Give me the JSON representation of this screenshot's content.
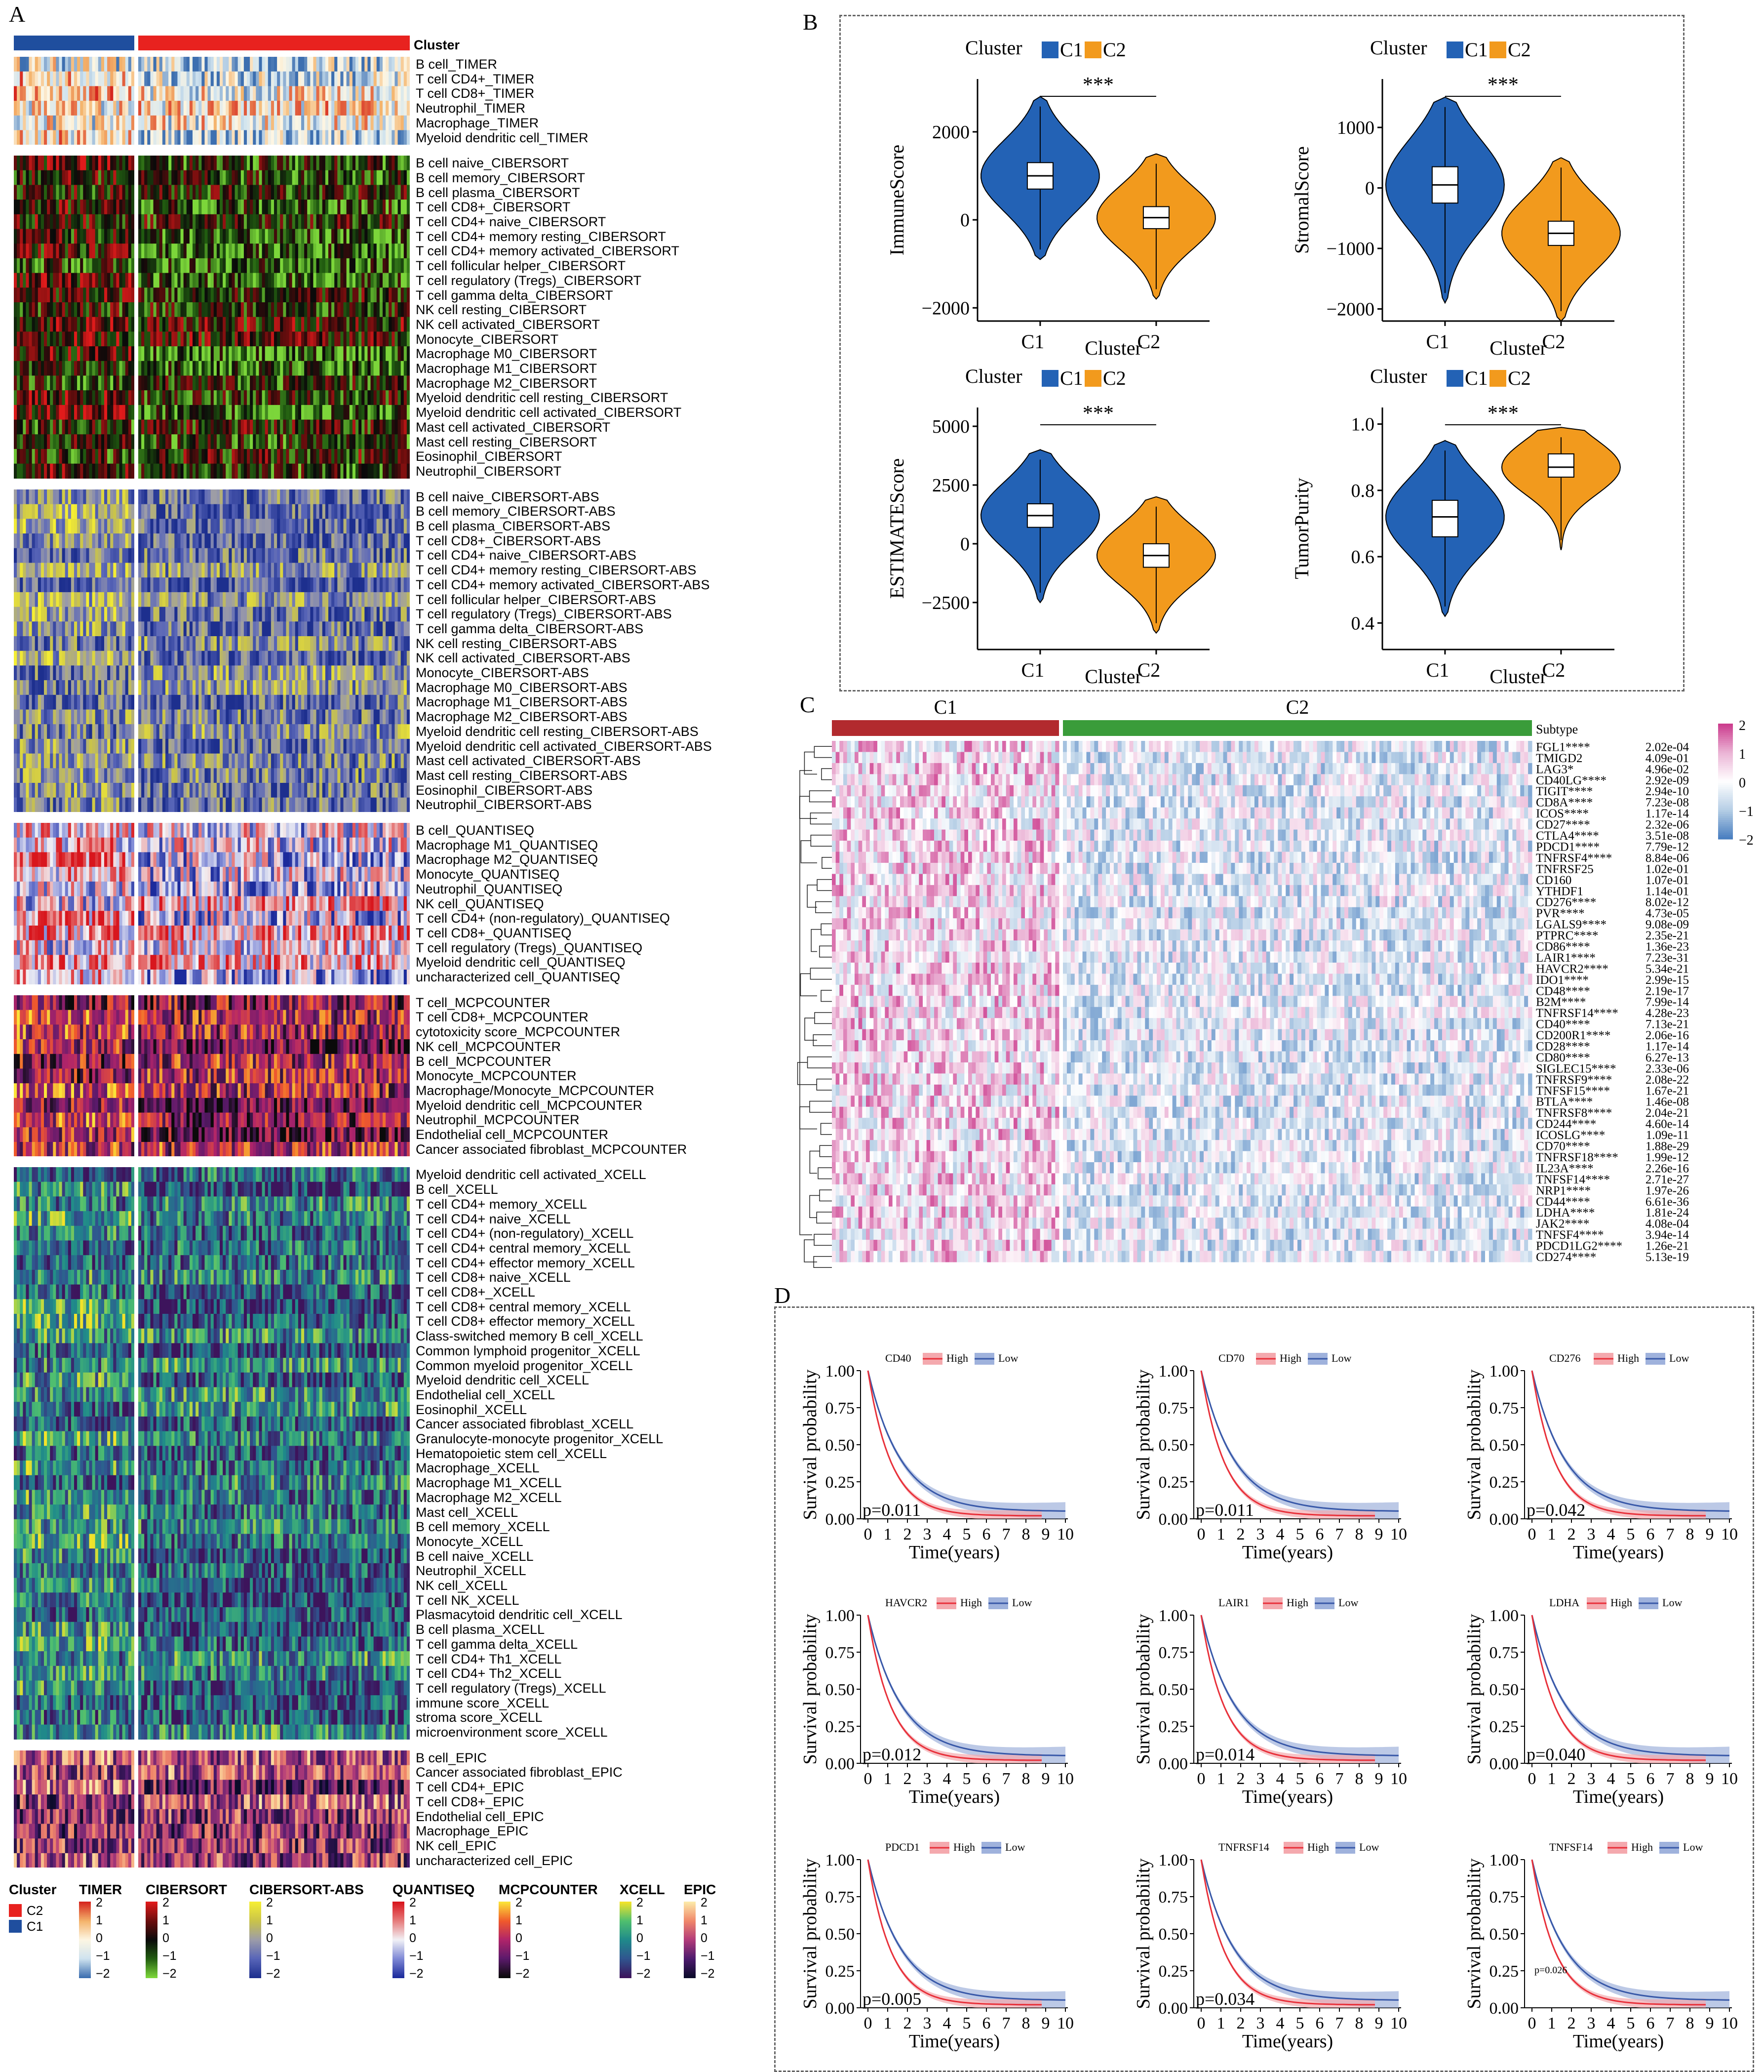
{
  "panel_a": {
    "letter": "A",
    "cluster_label": "Cluster",
    "groups": [
      {
        "name": "TIMER",
        "rows": [
          "B cell_TIMER",
          "T cell CD4+_TIMER",
          "T cell CD8+_TIMER",
          "Neutrophil_TIMER",
          "Macrophage_TIMER",
          "Myeloid dendritic cell_TIMER"
        ]
      },
      {
        "name": "CIBERSORT",
        "rows": [
          "B cell naive_CIBERSORT",
          "B cell memory_CIBERSORT",
          "B cell plasma_CIBERSORT",
          "T cell CD8+_CIBERSORT",
          "T cell CD4+ naive_CIBERSORT",
          "T cell CD4+ memory resting_CIBERSORT",
          "T cell CD4+ memory activated_CIBERSORT",
          "T cell follicular helper_CIBERSORT",
          "T cell regulatory (Tregs)_CIBERSORT",
          "T cell gamma delta_CIBERSORT",
          "NK cell resting_CIBERSORT",
          "NK cell activated_CIBERSORT",
          "Monocyte_CIBERSORT",
          "Macrophage M0_CIBERSORT",
          "Macrophage M1_CIBERSORT",
          "Macrophage M2_CIBERSORT",
          "Myeloid dendritic cell resting_CIBERSORT",
          "Myeloid dendritic cell activated_CIBERSORT",
          "Mast cell activated_CIBERSORT",
          "Mast cell resting_CIBERSORT",
          "Eosinophil_CIBERSORT",
          "Neutrophil_CIBERSORT"
        ]
      },
      {
        "name": "CIBERSORT-ABS",
        "rows": [
          "B cell naive_CIBERSORT-ABS",
          "B cell memory_CIBERSORT-ABS",
          "B cell plasma_CIBERSORT-ABS",
          "T cell CD8+_CIBERSORT-ABS",
          "T cell CD4+ naive_CIBERSORT-ABS",
          "T cell CD4+ memory resting_CIBERSORT-ABS",
          "T cell CD4+ memory activated_CIBERSORT-ABS",
          "T cell follicular helper_CIBERSORT-ABS",
          "T cell regulatory (Tregs)_CIBERSORT-ABS",
          "T cell gamma delta_CIBERSORT-ABS",
          "NK cell resting_CIBERSORT-ABS",
          "NK cell activated_CIBERSORT-ABS",
          "Monocyte_CIBERSORT-ABS",
          "Macrophage M0_CIBERSORT-ABS",
          "Macrophage M1_CIBERSORT-ABS",
          "Macrophage M2_CIBERSORT-ABS",
          "Myeloid dendritic cell resting_CIBERSORT-ABS",
          "Myeloid dendritic cell activated_CIBERSORT-ABS",
          "Mast cell activated_CIBERSORT-ABS",
          "Mast cell resting_CIBERSORT-ABS",
          "Eosinophil_CIBERSORT-ABS",
          "Neutrophil_CIBERSORT-ABS"
        ]
      },
      {
        "name": "QUANTISEQ",
        "rows": [
          "B cell_QUANTISEQ",
          "Macrophage M1_QUANTISEQ",
          "Macrophage M2_QUANTISEQ",
          "Monocyte_QUANTISEQ",
          "Neutrophil_QUANTISEQ",
          "NK cell_QUANTISEQ",
          "T cell CD4+ (non-regulatory)_QUANTISEQ",
          "T cell CD8+_QUANTISEQ",
          "T cell regulatory (Tregs)_QUANTISEQ",
          "Myeloid dendritic cell_QUANTISEQ",
          "uncharacterized cell_QUANTISEQ"
        ]
      },
      {
        "name": "MCPCOUNTER",
        "rows": [
          "T cell_MCPCOUNTER",
          "T cell CD8+_MCPCOUNTER",
          "cytotoxicity score_MCPCOUNTER",
          "NK cell_MCPCOUNTER",
          "B cell_MCPCOUNTER",
          "Monocyte_MCPCOUNTER",
          "Macrophage/Monocyte_MCPCOUNTER",
          "Myeloid dendritic cell_MCPCOUNTER",
          "Neutrophil_MCPCOUNTER",
          "Endothelial cell_MCPCOUNTER",
          "Cancer associated fibroblast_MCPCOUNTER"
        ]
      },
      {
        "name": "XCELL",
        "rows": [
          "Myeloid dendritic cell activated_XCELL",
          "B cell_XCELL",
          "T cell CD4+ memory_XCELL",
          "T cell CD4+ naive_XCELL",
          "T cell CD4+ (non-regulatory)_XCELL",
          "T cell CD4+ central memory_XCELL",
          "T cell CD4+ effector memory_XCELL",
          "T cell CD8+ naive_XCELL",
          "T cell CD8+_XCELL",
          "T cell CD8+ central memory_XCELL",
          "T cell CD8+ effector memory_XCELL",
          "Class-switched memory B cell_XCELL",
          "Common lymphoid progenitor_XCELL",
          "Common myeloid progenitor_XCELL",
          "Myeloid dendritic cell_XCELL",
          "Endothelial cell_XCELL",
          "Eosinophil_XCELL",
          "Cancer associated fibroblast_XCELL",
          "Granulocyte-monocyte progenitor_XCELL",
          "Hematopoietic stem cell_XCELL",
          "Macrophage_XCELL",
          "Macrophage M1_XCELL",
          "Macrophage M2_XCELL",
          "Mast cell_XCELL",
          "B cell memory_XCELL",
          "Monocyte_XCELL",
          "B cell naive_XCELL",
          "Neutrophil_XCELL",
          "NK cell_XCELL",
          "T cell NK_XCELL",
          "Plasmacytoid dendritic cell_XCELL",
          "B cell plasma_XCELL",
          "T cell gamma delta_XCELL",
          "T cell CD4+ Th1_XCELL",
          "T cell CD4+ Th2_XCELL",
          "T cell regulatory (Tregs)_XCELL",
          "immune score_XCELL",
          "stroma score_XCELL",
          "microenvironment score_XCELL"
        ]
      },
      {
        "name": "EPIC",
        "rows": [
          "B cell_EPIC",
          "Cancer associated fibroblast_EPIC",
          "T cell CD4+_EPIC",
          "T cell CD8+_EPIC",
          "Endothelial cell_EPIC",
          "Macrophage_EPIC",
          "NK cell_EPIC",
          "uncharacterized cell_EPIC"
        ]
      }
    ],
    "legend": {
      "cluster_title": "Cluster",
      "cluster_items": [
        "C2",
        "C1"
      ],
      "titles": [
        "TIMER",
        "CIBERSORT",
        "CIBERSORT-ABS",
        "QUANTISEQ",
        "MCPCOUNTER",
        "XCELL",
        "EPIC"
      ],
      "ticks": [
        "2",
        "1",
        "0",
        "−1",
        "−2"
      ]
    },
    "colors": {
      "c1": "#1f4e9e",
      "c2": "#e8221f"
    }
  },
  "panel_b": {
    "letter": "B",
    "legend_title": "Cluster",
    "legend_items": [
      "C1",
      "C2"
    ],
    "colors": {
      "c1": "#2362b5",
      "c2": "#f29a1d"
    },
    "significance": "***",
    "xlabel": "Cluster",
    "chart_data": [
      {
        "type": "violin",
        "ylabel": "ImmuneScore",
        "categories": [
          "C1",
          "C2"
        ],
        "ticks": [
          "2000",
          "0",
          "−2000"
        ],
        "tick_values": [
          2000,
          0,
          -2000
        ],
        "ylim": [
          -2300,
          3200
        ],
        "medians": [
          1000,
          50
        ],
        "q1": [
          700,
          -200
        ],
        "q3": [
          1300,
          300
        ],
        "min": [
          -900,
          -1800
        ],
        "max": [
          2800,
          1500
        ]
      },
      {
        "type": "violin",
        "ylabel": "StromalScore",
        "categories": [
          "C1",
          "C2"
        ],
        "ticks": [
          "1000",
          "0",
          "−1000",
          "−2000"
        ],
        "tick_values": [
          1000,
          0,
          -1000,
          -2000
        ],
        "ylim": [
          -2200,
          1800
        ],
        "medians": [
          50,
          -750
        ],
        "q1": [
          -250,
          -950
        ],
        "q3": [
          350,
          -550
        ],
        "min": [
          -1900,
          -2200
        ],
        "max": [
          1500,
          500
        ]
      },
      {
        "type": "violin",
        "ylabel": "ESTIMATEScore",
        "categories": [
          "C1",
          "C2"
        ],
        "ticks": [
          "5000",
          "2500",
          "0",
          "−2500"
        ],
        "tick_values": [
          5000,
          2500,
          0,
          -2500
        ],
        "ylim": [
          -4500,
          5800
        ],
        "medians": [
          1200,
          -500
        ],
        "q1": [
          700,
          -1000
        ],
        "q3": [
          1700,
          0
        ],
        "min": [
          -2500,
          -3800
        ],
        "max": [
          4000,
          2000
        ]
      },
      {
        "type": "violin",
        "ylabel": "TumorPurity",
        "categories": [
          "C1",
          "C2"
        ],
        "ticks": [
          "1.0",
          "0.8",
          "0.6",
          "0.4"
        ],
        "tick_values": [
          1.0,
          0.8,
          0.6,
          0.4
        ],
        "ylim": [
          0.32,
          1.05
        ],
        "medians": [
          0.72,
          0.87
        ],
        "q1": [
          0.66,
          0.84
        ],
        "q3": [
          0.77,
          0.91
        ],
        "min": [
          0.42,
          0.62
        ],
        "max": [
          0.95,
          0.99
        ]
      }
    ]
  },
  "panel_c": {
    "letter": "C",
    "group_labels": [
      "C1",
      "C2"
    ],
    "subtype_label": "Subtype",
    "colors": {
      "c1": "#b22a2e",
      "c2": "#3a9c3a"
    },
    "scale_ticks": [
      "2",
      "1",
      "0",
      "−1",
      "−2"
    ],
    "genes": [
      {
        "gene": "FGL1****",
        "p": "2.02e-04"
      },
      {
        "gene": "TMIGD2",
        "p": "4.09e-01"
      },
      {
        "gene": "LAG3*",
        "p": "4.96e-02"
      },
      {
        "gene": "CD40LG****",
        "p": "2.92e-09"
      },
      {
        "gene": "TIGIT****",
        "p": "2.94e-10"
      },
      {
        "gene": "CD8A****",
        "p": "7.23e-08"
      },
      {
        "gene": "ICOS****",
        "p": "1.17e-14"
      },
      {
        "gene": "CD27****",
        "p": "2.32e-06"
      },
      {
        "gene": "CTLA4****",
        "p": "3.51e-08"
      },
      {
        "gene": "PDCD1****",
        "p": "7.79e-12"
      },
      {
        "gene": "TNFRSF4****",
        "p": "8.84e-06"
      },
      {
        "gene": "TNFRSF25",
        "p": "1.02e-01"
      },
      {
        "gene": "CD160",
        "p": "1.07e-01"
      },
      {
        "gene": "YTHDF1",
        "p": "1.14e-01"
      },
      {
        "gene": "CD276****",
        "p": "8.02e-12"
      },
      {
        "gene": "PVR****",
        "p": "4.73e-05"
      },
      {
        "gene": "LGALS9****",
        "p": "9.08e-09"
      },
      {
        "gene": "PTPRC****",
        "p": "2.35e-21"
      },
      {
        "gene": "CD86****",
        "p": "1.36e-23"
      },
      {
        "gene": "LAIR1****",
        "p": "7.23e-31"
      },
      {
        "gene": "HAVCR2****",
        "p": "5.34e-21"
      },
      {
        "gene": "IDO1****",
        "p": "2.99e-15"
      },
      {
        "gene": "CD48****",
        "p": "2.19e-17"
      },
      {
        "gene": "B2M****",
        "p": "7.99e-14"
      },
      {
        "gene": "TNFRSF14****",
        "p": "4.28e-23"
      },
      {
        "gene": "CD40****",
        "p": "7.13e-21"
      },
      {
        "gene": "CD200R1****",
        "p": "2.06e-16"
      },
      {
        "gene": "CD28****",
        "p": "1.17e-14"
      },
      {
        "gene": "CD80****",
        "p": "6.27e-13"
      },
      {
        "gene": "SIGLEC15****",
        "p": "2.33e-06"
      },
      {
        "gene": "TNFRSF9****",
        "p": "2.08e-22"
      },
      {
        "gene": "TNFSF15****",
        "p": "1.67e-21"
      },
      {
        "gene": "BTLA****",
        "p": "1.46e-08"
      },
      {
        "gene": "TNFRSF8****",
        "p": "2.04e-21"
      },
      {
        "gene": "CD244****",
        "p": "4.60e-14"
      },
      {
        "gene": "ICOSLG****",
        "p": "1.09e-11"
      },
      {
        "gene": "CD70****",
        "p": "1.88e-29"
      },
      {
        "gene": "TNFRSF18****",
        "p": "1.99e-12"
      },
      {
        "gene": "IL23A****",
        "p": "2.26e-16"
      },
      {
        "gene": "TNFSF14****",
        "p": "2.71e-27"
      },
      {
        "gene": "NRP1****",
        "p": "1.97e-26"
      },
      {
        "gene": "CD44****",
        "p": "6.61e-36"
      },
      {
        "gene": "LDHA****",
        "p": "1.81e-24"
      },
      {
        "gene": "JAK2****",
        "p": "4.08e-04"
      },
      {
        "gene": "TNFSF4****",
        "p": "3.94e-14"
      },
      {
        "gene": "PDCD1LG2****",
        "p": "1.26e-21"
      },
      {
        "gene": "CD274****",
        "p": "5.13e-19"
      }
    ]
  },
  "panel_d": {
    "letter": "D",
    "legend_high": "High",
    "legend_low": "Low",
    "xlabel": "Time(years)",
    "ylabel": "Survival probability",
    "yticks": [
      "1.00",
      "0.75",
      "0.50",
      "0.25",
      "0.00"
    ],
    "xticks": [
      "0",
      "1",
      "2",
      "3",
      "4",
      "5",
      "6",
      "7",
      "8",
      "9",
      "10"
    ],
    "colors": {
      "high": "#e8303a",
      "low": "#3858a8",
      "high_band": "#f4a9ae",
      "low_band": "#9fb2dc"
    },
    "chart_data": [
      {
        "type": "line",
        "gene": "CD40",
        "p": "p=0.011"
      },
      {
        "type": "line",
        "gene": "CD70",
        "p": "p=0.011"
      },
      {
        "type": "line",
        "gene": "CD276",
        "p": "p=0.042"
      },
      {
        "type": "line",
        "gene": "HAVCR2",
        "p": "p=0.012"
      },
      {
        "type": "line",
        "gene": "LAIR1",
        "p": "p=0.014"
      },
      {
        "type": "line",
        "gene": "LDHA",
        "p": "p=0.040"
      },
      {
        "type": "line",
        "gene": "PDCD1",
        "p": "p=0.005"
      },
      {
        "type": "line",
        "gene": "TNFRSF14",
        "p": "p=0.034"
      },
      {
        "type": "line",
        "gene": "TNFSF14",
        "p": "p=0.026"
      }
    ]
  }
}
